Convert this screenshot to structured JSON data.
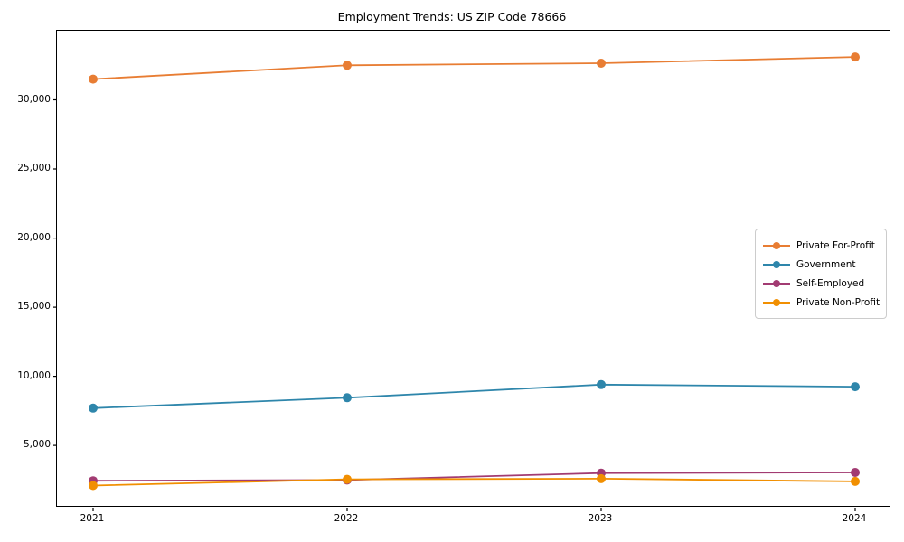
{
  "title": "Employment Trends: US ZIP Code 78666",
  "chart_data": {
    "type": "line",
    "title": "Employment Trends: US ZIP Code 78666",
    "xlabel": "",
    "ylabel": "",
    "categories": [
      "2021",
      "2022",
      "2023",
      "2024"
    ],
    "series": [
      {
        "name": "Private For-Profit",
        "color": "#E87D33",
        "values": [
          31500,
          32500,
          32650,
          33100
        ]
      },
      {
        "name": "Government",
        "color": "#2E86AB",
        "values": [
          7700,
          8450,
          9400,
          9250
        ]
      },
      {
        "name": "Self-Employed",
        "color": "#A23B72",
        "values": [
          2450,
          2500,
          3000,
          3050
        ]
      },
      {
        "name": "Private Non-Profit",
        "color": "#F18F01",
        "values": [
          2100,
          2550,
          2600,
          2400
        ]
      }
    ],
    "yticks": [
      5000,
      10000,
      15000,
      20000,
      25000,
      30000
    ],
    "ytick_labels": [
      "5,000",
      "10,000",
      "15,000",
      "20,000",
      "25,000",
      "30,000"
    ],
    "ylim": [
      500,
      35000
    ],
    "grid": false,
    "legend_position": "center right",
    "marker": "circle",
    "background": "#ffffff",
    "axis_color": "#000000"
  }
}
